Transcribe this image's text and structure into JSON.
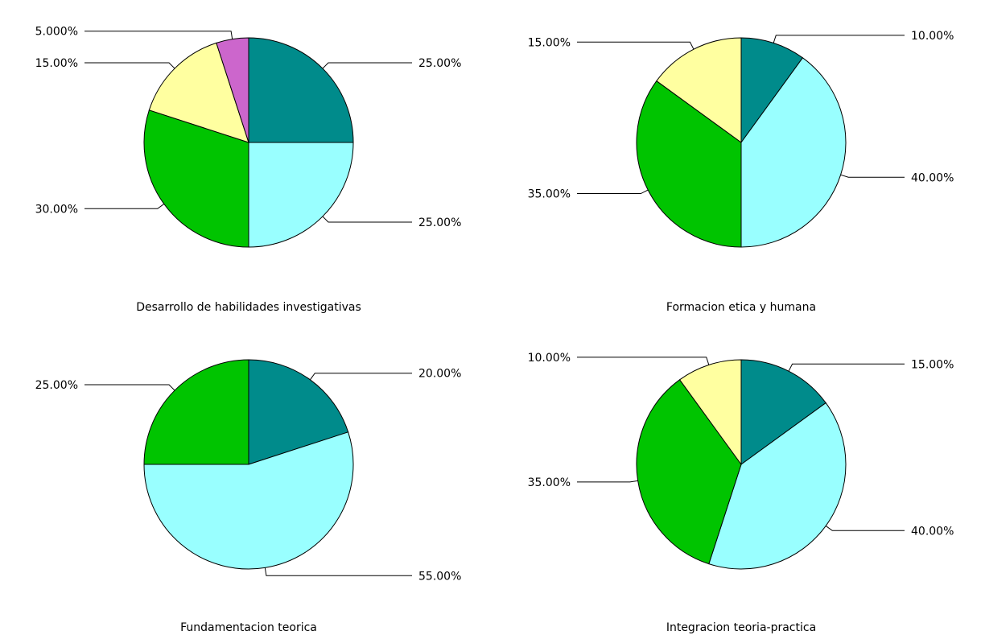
{
  "chart_data": [
    {
      "type": "pie",
      "title": "Desarrollo de habilidades investigativas",
      "slices": [
        {
          "value": 25,
          "label": "25.00%",
          "color": "#008B8B"
        },
        {
          "value": 25,
          "label": "25.00%",
          "color": "#99FFFF"
        },
        {
          "value": 30,
          "label": "30.00%",
          "color": "#00C400"
        },
        {
          "value": 15,
          "label": "15.00%",
          "color": "#FFFFA0"
        },
        {
          "value": 5,
          "label": "5.000%",
          "color": "#CC66CC"
        }
      ]
    },
    {
      "type": "pie",
      "title": "Formacion etica y humana",
      "slices": [
        {
          "value": 10,
          "label": "10.00%",
          "color": "#008B8B"
        },
        {
          "value": 40,
          "label": "40.00%",
          "color": "#99FFFF"
        },
        {
          "value": 35,
          "label": "35.00%",
          "color": "#00C400"
        },
        {
          "value": 15,
          "label": "15.00%",
          "color": "#FFFFA0"
        }
      ]
    },
    {
      "type": "pie",
      "title": "Fundamentacion teorica",
      "slices": [
        {
          "value": 20,
          "label": "20.00%",
          "color": "#008B8B"
        },
        {
          "value": 55,
          "label": "55.00%",
          "color": "#99FFFF"
        },
        {
          "value": 25,
          "label": "25.00%",
          "color": "#00C400"
        }
      ]
    },
    {
      "type": "pie",
      "title": "Integracion teoria-practica",
      "slices": [
        {
          "value": 15,
          "label": "15.00%",
          "color": "#008B8B"
        },
        {
          "value": 40,
          "label": "40.00%",
          "color": "#99FFFF"
        },
        {
          "value": 35,
          "label": "35.00%",
          "color": "#00C400"
        },
        {
          "value": 10,
          "label": "10.00%",
          "color": "#FFFFA0"
        }
      ]
    }
  ]
}
